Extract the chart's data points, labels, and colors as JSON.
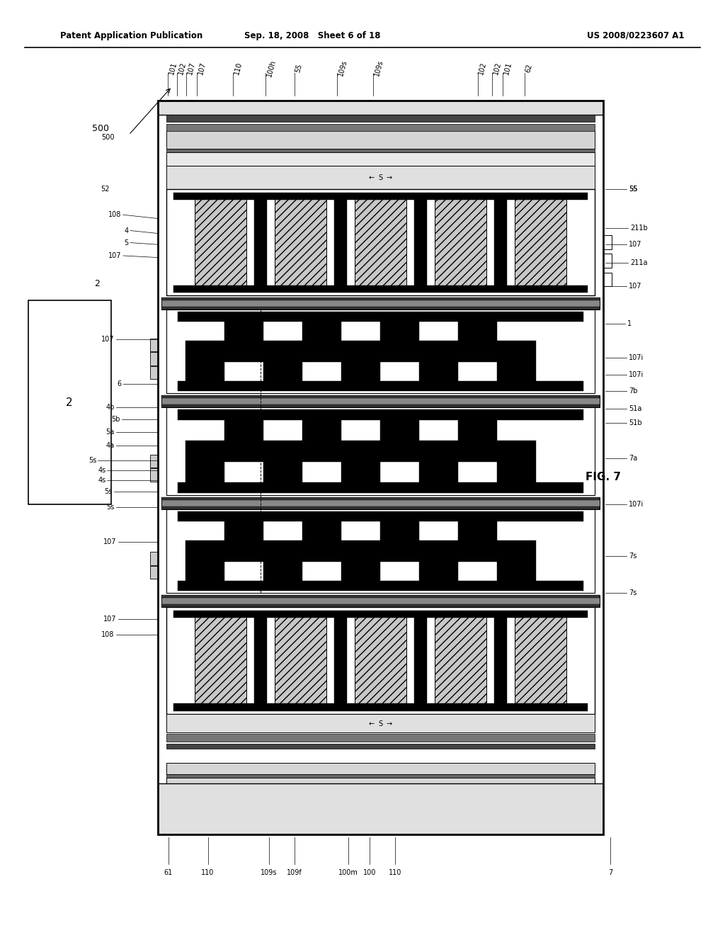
{
  "title_left": "Patent Application Publication",
  "title_mid": "Sep. 18, 2008   Sheet 6 of 18",
  "title_right": "US 2008/0223607 A1",
  "fig_label": "FIG. 7",
  "background": "#ffffff",
  "lfs": 7.0,
  "diagram": {
    "ml": 0.215,
    "mr": 0.835,
    "mb": 0.105,
    "mt": 0.895
  }
}
